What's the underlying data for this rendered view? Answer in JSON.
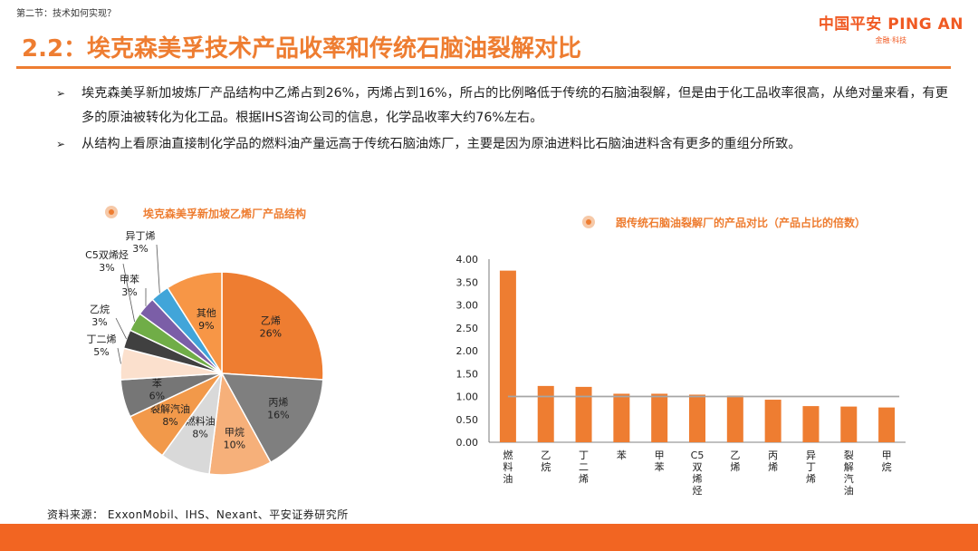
{
  "header": {
    "section": "第二节：技术如何实现？",
    "title": "2.2：埃克森美孚技术产品收率和传统石脑油裂解对比",
    "logo_main": "中国平安 PING AN",
    "logo_sub": "金融·科技"
  },
  "bullets": [
    "埃克森美孚新加坡炼厂产品结构中乙烯占到26%，丙烯占到16%，所占的比例略低于传统的石脑油裂解，但是由于化工品收率很高，从绝对量来看，有更多的原油被转化为化工品。根据IHS咨询公司的信息，化学品收率大约76%左右。",
    "从结构上看原油直接制化学品的燃料油产量远高于传统石脑油炼厂，主要是因为原油进料比石脑油进料含有更多的重组分所致。"
  ],
  "pie_title": "埃克森美孚新加坡乙烯厂产品结构",
  "bar_title": "跟传统石脑油裂解厂的产品对比（产品占比的倍数）",
  "chart_data": [
    {
      "type": "pie",
      "title": "埃克森美孚新加坡乙烯厂产品结构",
      "slices": [
        {
          "label": "乙烯",
          "value": 26,
          "pct": "26%",
          "color": "#ee7d31"
        },
        {
          "label": "丙烯",
          "value": 16,
          "pct": "16%",
          "color": "#7f7f7f"
        },
        {
          "label": "甲烷",
          "value": 10,
          "pct": "10%",
          "color": "#f6b07a"
        },
        {
          "label": "燃料油",
          "value": 8,
          "pct": "8%",
          "color": "#d9d9d9"
        },
        {
          "label": "裂解汽油",
          "value": 8,
          "pct": "8%",
          "color": "#f2994a"
        },
        {
          "label": "苯",
          "value": 6,
          "pct": "6%",
          "color": "#767676"
        },
        {
          "label": "丁二烯",
          "value": 5,
          "pct": "5%",
          "color": "#fbe0cd"
        },
        {
          "label": "乙烷",
          "value": 3,
          "pct": "3%",
          "color": "#404040"
        },
        {
          "label": "C5双烯烃",
          "value": 3,
          "pct": "3%",
          "color": "#70ad47"
        },
        {
          "label": "甲苯",
          "value": 3,
          "pct": "3%",
          "color": "#7b5ea7"
        },
        {
          "label": "异丁烯",
          "value": 3,
          "pct": "3%",
          "color": "#41a5d9"
        },
        {
          "label": "其他",
          "value": 9,
          "pct": "9%",
          "color": "#f79646"
        }
      ]
    },
    {
      "type": "bar",
      "title": "跟传统石脑油裂解厂的产品对比（产品占比的倍数）",
      "categories": [
        "燃料油",
        "乙烷",
        "丁二烯",
        "苯",
        "甲苯",
        "C5双烯烃",
        "乙烯",
        "丙烯",
        "异丁烯",
        "裂解汽油",
        "甲烷"
      ],
      "values": [
        3.75,
        1.23,
        1.21,
        1.06,
        1.06,
        1.04,
        1.02,
        0.93,
        0.79,
        0.78,
        0.76
      ],
      "reference_line": 1.0,
      "ylim": [
        0,
        4.0
      ],
      "yticks": [
        "0.00",
        "0.50",
        "1.00",
        "1.50",
        "2.00",
        "2.50",
        "3.00",
        "3.50",
        "4.00"
      ],
      "bar_color": "#ee7d31",
      "reference_color": "#a6a6a6"
    }
  ],
  "source": "资料来源： ExxonMobil、IHS、Nexant、平安证券研究所",
  "colors": {
    "accent": "#ee7d31",
    "footer": "#f26522"
  }
}
